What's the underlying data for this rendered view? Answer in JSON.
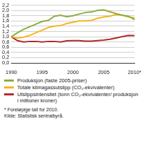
{
  "chart_data": {
    "type": "line",
    "categories": [
      "1990",
      null,
      null,
      null,
      null,
      "1995",
      null,
      null,
      null,
      null,
      "2000",
      null,
      null,
      null,
      null,
      "2005",
      null,
      null,
      null,
      null,
      "2010*"
    ],
    "series": [
      {
        "name": "Produksjon (faste 2005-priser)",
        "color": "#8aad3b",
        "values": [
          1.0,
          1.15,
          1.28,
          1.38,
          1.48,
          1.58,
          1.62,
          1.78,
          1.82,
          1.76,
          1.8,
          1.86,
          1.92,
          1.94,
          2.0,
          2.02,
          1.95,
          1.88,
          1.82,
          1.78,
          1.65
        ]
      },
      {
        "name": "Totale klimagassutslipp (CO₂-ekvivalenter)",
        "color": "#f5b51c",
        "values": [
          1.0,
          0.95,
          0.98,
          1.05,
          1.15,
          1.25,
          1.35,
          1.4,
          1.42,
          1.5,
          1.55,
          1.6,
          1.6,
          1.62,
          1.7,
          1.75,
          1.78,
          1.85,
          1.82,
          1.75,
          1.72
        ]
      },
      {
        "name": "Utslippsintensitet (tonn CO₂-ekvivalenter/ produksjon i millioner kroner)",
        "color": "#b3262b",
        "values": [
          1.0,
          0.85,
          0.8,
          0.82,
          0.82,
          0.8,
          0.82,
          0.82,
          0.8,
          0.84,
          0.85,
          0.85,
          0.83,
          0.83,
          0.85,
          0.87,
          0.9,
          0.95,
          1.0,
          1.05,
          1.04
        ]
      }
    ],
    "ylim": [
      0,
      2.2
    ],
    "yticks": [
      {
        "value": 0,
        "label": "0,0"
      },
      {
        "value": 0.2,
        "label": "0,2"
      },
      {
        "value": 0.4,
        "label": "0,4"
      },
      {
        "value": 0.6,
        "label": "0,6"
      },
      {
        "value": 0.8,
        "label": "0,8"
      },
      {
        "value": 1.0,
        "label": "1,0"
      },
      {
        "value": 1.2,
        "label": "1,2"
      },
      {
        "value": 1.4,
        "label": "1,4"
      },
      {
        "value": 1.6,
        "label": "1,6"
      },
      {
        "value": 1.8,
        "label": "1,8"
      },
      {
        "value": 2.0,
        "label": "2,0"
      },
      {
        "value": 2.2,
        "label": "2,2"
      }
    ],
    "grid": true,
    "legend": "bottom",
    "annotations": [
      "* Foreløpige tall for 2010.",
      "Kilde: Statistisk sentralbyrå."
    ]
  }
}
